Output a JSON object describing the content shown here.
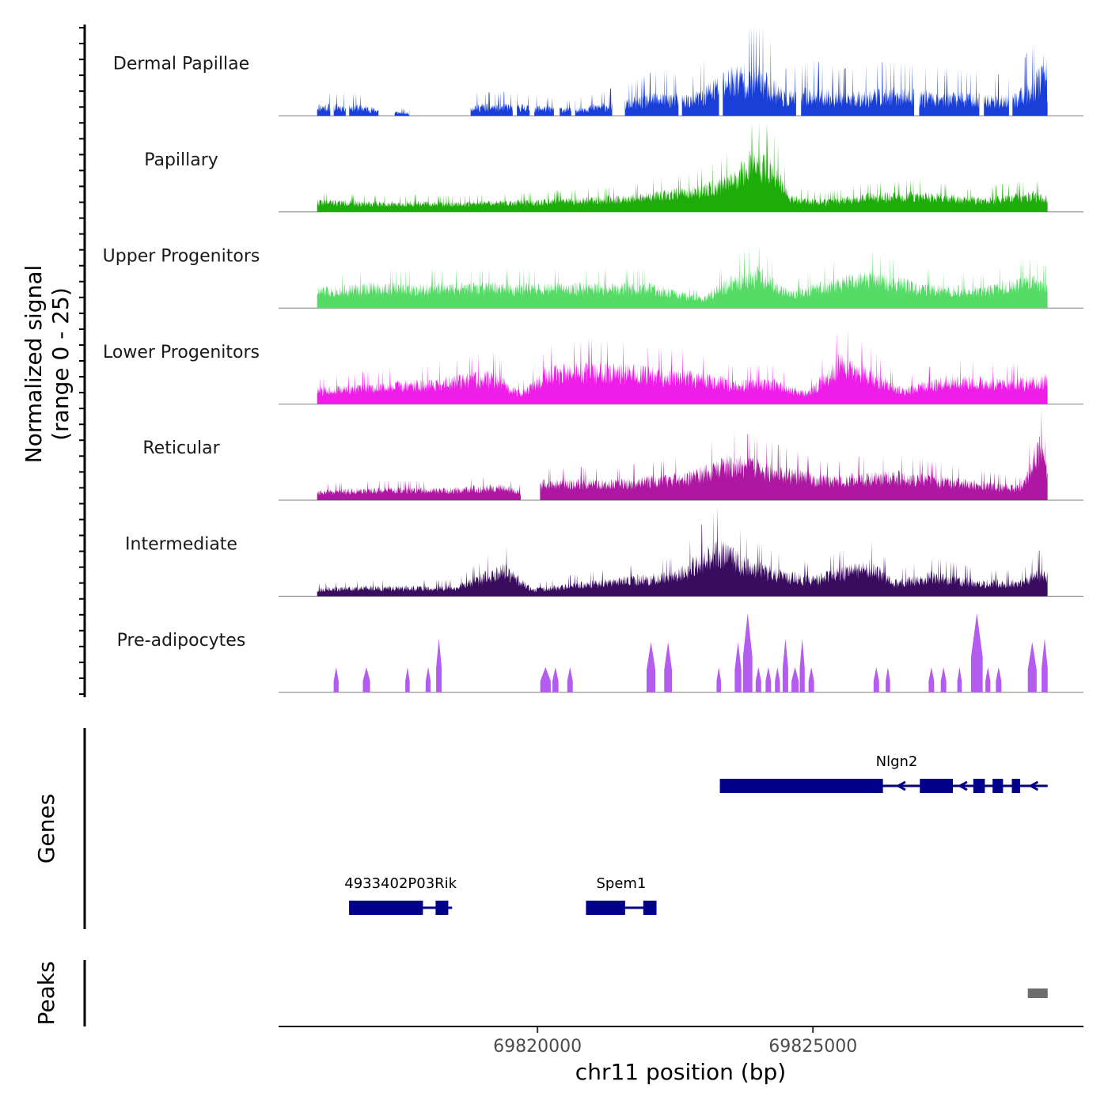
{
  "chart_data": {
    "type": "area",
    "title": "",
    "ylabel_lines": [
      "Normalized signal",
      "(range 0 - 25)"
    ],
    "yrange": [
      0,
      25
    ],
    "xlabel": "chr11 position (bp)",
    "xlim": [
      69815300,
      69829910
    ],
    "xticks": [
      {
        "value": 69820000,
        "label": "69820000"
      },
      {
        "value": 69825000,
        "label": "69825000"
      }
    ],
    "region_start": 69816000,
    "region_end": 69829260,
    "tracks": [
      {
        "name": "Dermal Papillae",
        "color": "#1a3fd9",
        "style": "sparse_high",
        "seed": 11,
        "profile": [
          [
            69816000,
            3
          ],
          [
            69816700,
            3
          ],
          [
            69817200,
            1.5
          ],
          [
            69818200,
            0
          ],
          [
            69818800,
            3
          ],
          [
            69819600,
            3
          ],
          [
            69820600,
            2
          ],
          [
            69821600,
            4
          ],
          [
            69822200,
            6
          ],
          [
            69822800,
            5
          ],
          [
            69823500,
            12
          ],
          [
            69824000,
            13
          ],
          [
            69824500,
            6
          ],
          [
            69825000,
            7
          ],
          [
            69825600,
            6
          ],
          [
            69826400,
            7
          ],
          [
            69827500,
            6
          ],
          [
            69828600,
            5
          ],
          [
            69829000,
            9
          ],
          [
            69829200,
            16
          ],
          [
            69829260,
            4
          ]
        ],
        "gaps": [
          [
            69816240,
            69816300
          ],
          [
            69816520,
            69816580
          ],
          [
            69817120,
            69817400
          ],
          [
            69817680,
            69818780
          ],
          [
            69819550,
            69819620
          ],
          [
            69819860,
            69819940
          ],
          [
            69820300,
            69820400
          ],
          [
            69820620,
            69820680
          ],
          [
            69821360,
            69821580
          ],
          [
            69822560,
            69822620
          ],
          [
            69823300,
            69823360
          ],
          [
            69824700,
            69824780
          ],
          [
            69826840,
            69826920
          ],
          [
            69828020,
            69828100
          ],
          [
            69828560,
            69828620
          ]
        ]
      },
      {
        "name": "Papillary",
        "color": "#1eac0b",
        "style": "dense",
        "seed": 22,
        "profile": [
          [
            69816000,
            3
          ],
          [
            69817000,
            2.6
          ],
          [
            69818500,
            2.5
          ],
          [
            69820000,
            3
          ],
          [
            69821500,
            4
          ],
          [
            69822800,
            6
          ],
          [
            69823300,
            8
          ],
          [
            69823600,
            10
          ],
          [
            69823900,
            16
          ],
          [
            69824300,
            12
          ],
          [
            69824600,
            4
          ],
          [
            69825200,
            3
          ],
          [
            69826000,
            4.5
          ],
          [
            69827000,
            5
          ],
          [
            69828000,
            3.5
          ],
          [
            69829000,
            5
          ],
          [
            69829260,
            4
          ]
        ],
        "gaps": []
      },
      {
        "name": "Upper Progenitors",
        "color": "#55db66",
        "style": "dense",
        "seed": 33,
        "profile": [
          [
            69816000,
            5
          ],
          [
            69817000,
            6
          ],
          [
            69818000,
            6
          ],
          [
            69819500,
            6
          ],
          [
            69821000,
            6
          ],
          [
            69822000,
            6
          ],
          [
            69823000,
            2.5
          ],
          [
            69823500,
            8
          ],
          [
            69824000,
            10
          ],
          [
            69824600,
            4
          ],
          [
            69825000,
            6
          ],
          [
            69826000,
            9
          ],
          [
            69827000,
            6
          ],
          [
            69828000,
            5
          ],
          [
            69829000,
            8
          ],
          [
            69829260,
            6
          ]
        ],
        "gaps": []
      },
      {
        "name": "Lower Progenitors",
        "color": "#ef1de8",
        "style": "dense",
        "seed": 44,
        "profile": [
          [
            69816000,
            4
          ],
          [
            69817000,
            5
          ],
          [
            69818000,
            6
          ],
          [
            69819200,
            8
          ],
          [
            69819700,
            3
          ],
          [
            69820200,
            9
          ],
          [
            69821000,
            10
          ],
          [
            69822000,
            9
          ],
          [
            69822800,
            8
          ],
          [
            69823500,
            6
          ],
          [
            69824300,
            6
          ],
          [
            69824900,
            3
          ],
          [
            69825500,
            12
          ],
          [
            69826000,
            9
          ],
          [
            69826600,
            4
          ],
          [
            69827500,
            7
          ],
          [
            69828500,
            6
          ],
          [
            69829260,
            7
          ]
        ],
        "gaps": []
      },
      {
        "name": "Reticular",
        "color": "#ae17a2",
        "style": "dense",
        "seed": 55,
        "profile": [
          [
            69816000,
            2.5
          ],
          [
            69817000,
            3
          ],
          [
            69818500,
            3
          ],
          [
            69819300,
            4
          ],
          [
            69819900,
            1.5
          ],
          [
            69820100,
            5
          ],
          [
            69821500,
            5
          ],
          [
            69822800,
            7
          ],
          [
            69823500,
            11
          ],
          [
            69824500,
            8
          ],
          [
            69825200,
            6
          ],
          [
            69826500,
            7
          ],
          [
            69827800,
            5
          ],
          [
            69828800,
            3.5
          ],
          [
            69829000,
            12
          ],
          [
            69829200,
            18
          ],
          [
            69829260,
            6
          ]
        ],
        "gaps": [
          [
            69819700,
            69820040
          ]
        ]
      },
      {
        "name": "Intermediate",
        "color": "#3a0c60",
        "style": "dense",
        "seed": 66,
        "profile": [
          [
            69816000,
            2
          ],
          [
            69817000,
            2.5
          ],
          [
            69818500,
            2.5
          ],
          [
            69819400,
            8
          ],
          [
            69819900,
            2
          ],
          [
            69820500,
            3
          ],
          [
            69821800,
            5
          ],
          [
            69822500,
            6
          ],
          [
            69823300,
            14
          ],
          [
            69823800,
            9
          ],
          [
            69824500,
            6
          ],
          [
            69825000,
            5
          ],
          [
            69826000,
            9
          ],
          [
            69826500,
            4
          ],
          [
            69827200,
            6
          ],
          [
            69828000,
            4
          ],
          [
            69828800,
            4
          ],
          [
            69829100,
            7
          ],
          [
            69829260,
            6
          ]
        ],
        "gaps": []
      },
      {
        "name": "Pre-adipocytes",
        "color": "#b45bf0",
        "style": "blocks",
        "seed": 77,
        "profile": [],
        "gaps": [],
        "blocks": [
          [
            69816300,
            69816390,
            7
          ],
          [
            69816830,
            69816960,
            7
          ],
          [
            69817600,
            69817680,
            7
          ],
          [
            69817970,
            69818060,
            7
          ],
          [
            69818160,
            69818260,
            15
          ],
          [
            69820050,
            69820240,
            7
          ],
          [
            69820270,
            69820380,
            7
          ],
          [
            69820540,
            69820640,
            7
          ],
          [
            69821980,
            69822140,
            14
          ],
          [
            69822300,
            69822440,
            14
          ],
          [
            69823250,
            69823330,
            7
          ],
          [
            69823580,
            69823700,
            14
          ],
          [
            69823730,
            69823900,
            22
          ],
          [
            69823960,
            69824060,
            7
          ],
          [
            69824140,
            69824240,
            7
          ],
          [
            69824310,
            69824400,
            7
          ],
          [
            69824450,
            69824550,
            15
          ],
          [
            69824610,
            69824740,
            7
          ],
          [
            69824760,
            69824850,
            15
          ],
          [
            69824920,
            69825020,
            7
          ],
          [
            69826100,
            69826200,
            7
          ],
          [
            69826320,
            69826400,
            7
          ],
          [
            69827100,
            69827200,
            7
          ],
          [
            69827320,
            69827420,
            7
          ],
          [
            69827620,
            69827700,
            7
          ],
          [
            69827870,
            69828080,
            22
          ],
          [
            69828130,
            69828220,
            7
          ],
          [
            69828320,
            69828420,
            7
          ],
          [
            69828900,
            69829060,
            14
          ],
          [
            69829150,
            69829260,
            15
          ]
        ]
      }
    ],
    "genes": [
      {
        "name": "Nlgn2",
        "strand": "-",
        "row": 1,
        "span": [
          69823310,
          69829260
        ],
        "exons": [
          [
            69823310,
            69826270
          ],
          [
            69826940,
            69827540
          ],
          [
            69827910,
            69828120
          ],
          [
            69828260,
            69828450
          ],
          [
            69828610,
            69828760
          ]
        ]
      },
      {
        "name": "4933402P03Rik",
        "strand": "-",
        "row": 2,
        "span": [
          69816580,
          69818450
        ],
        "exons": [
          [
            69816580,
            69817920
          ],
          [
            69818150,
            69818380
          ]
        ]
      },
      {
        "name": "Spem1",
        "strand": "-",
        "row": 2,
        "span": [
          69820880,
          69822160
        ],
        "exons": [
          [
            69820880,
            69821590
          ],
          [
            69821920,
            69822160
          ]
        ]
      }
    ],
    "peaks": [
      {
        "start": 69828900,
        "end": 69829260,
        "color": "#6c6c6c"
      }
    ],
    "panel_titles": {
      "genes": "Genes",
      "peaks": "Peaks"
    }
  }
}
